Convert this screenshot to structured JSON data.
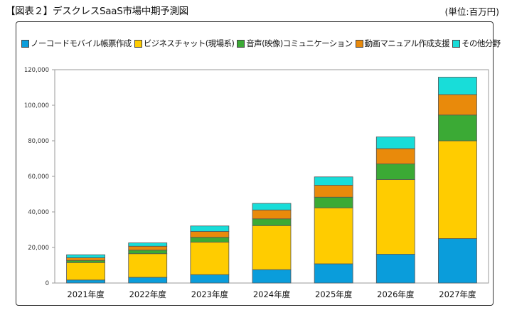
{
  "caption": "【図表２】デスクレスSaaS市場中期予測図",
  "unit": "(単位:百万円)",
  "colors": {
    "series": [
      "#0A9DDB",
      "#FFCC00",
      "#3BAA35",
      "#E98A0B",
      "#18DDD9"
    ]
  },
  "chart_data": {
    "type": "bar",
    "stacked": true,
    "title": "【図表２】デスクレスSaaS市場中期予測図",
    "ylabel": "(単位:百万円)",
    "categories": [
      "2021年度",
      "2022年度",
      "2023年度",
      "2024年度",
      "2025年度",
      "2026年度",
      "2027年度"
    ],
    "series": [
      {
        "name": "ノーコードモバイル帳票作成",
        "values": [
          1700,
          3200,
          4700,
          7500,
          10800,
          16200,
          25000
        ]
      },
      {
        "name": "ビジネスチャット(現場系)",
        "values": [
          9800,
          13300,
          18300,
          24800,
          31500,
          42000,
          55000
        ]
      },
      {
        "name": "音声(映像)コミュニケーション",
        "values": [
          1200,
          2000,
          2700,
          3800,
          6000,
          8800,
          14500
        ]
      },
      {
        "name": "動画マニュアル作成支援",
        "values": [
          1500,
          2200,
          3300,
          5000,
          6700,
          8600,
          11500
        ]
      },
      {
        "name": "その他分野",
        "values": [
          1700,
          1900,
          3100,
          3700,
          4700,
          6600,
          9800
        ]
      }
    ],
    "yticks": [
      "0",
      "20,000",
      "40,000",
      "60,000",
      "80,000",
      "100,000",
      "120,000"
    ],
    "ylim": [
      0,
      120000
    ],
    "grid": false,
    "legend_position": "top"
  }
}
